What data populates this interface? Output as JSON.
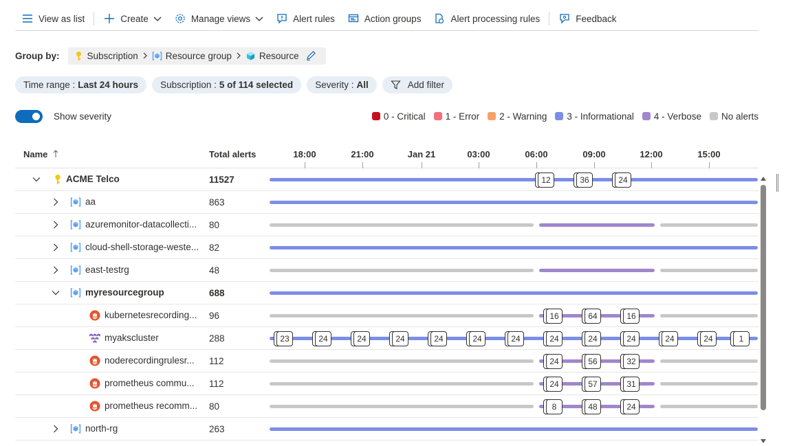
{
  "toolbar": {
    "view_as_list": "View as list",
    "create": "Create",
    "manage_views": "Manage views",
    "alert_rules": "Alert rules",
    "action_groups": "Action groups",
    "alert_processing_rules": "Alert processing rules",
    "feedback": "Feedback"
  },
  "group_by": {
    "label": "Group by:",
    "levels": [
      "Subscription",
      "Resource group",
      "Resource"
    ]
  },
  "filters": {
    "time_range": {
      "key": "Time range :",
      "value": "Last 24 hours"
    },
    "subscription": {
      "key": "Subscription :",
      "value": "5 of 114 selected"
    },
    "severity": {
      "key": "Severity :",
      "value": "All"
    },
    "add_filter": "Add filter"
  },
  "severity_toggle": {
    "label": "Show severity",
    "on": true
  },
  "legend": [
    {
      "label": "0 - Critical",
      "color": "#c50f1f"
    },
    {
      "label": "1 - Error",
      "color": "#f1707b"
    },
    {
      "label": "2 - Warning",
      "color": "#f4a266"
    },
    {
      "label": "3 - Informational",
      "color": "#7b8ee8"
    },
    {
      "label": "4 - Verbose",
      "color": "#a186cc"
    },
    {
      "label": "No alerts",
      "color": "#c8c8c8"
    }
  ],
  "grid": {
    "name_header": "Name",
    "name_sort_icon": "sort-ascending-arrow",
    "total_header": "Total alerts",
    "ticks": [
      "18:00",
      "21:00",
      "Jan 21",
      "03:00",
      "06:00",
      "09:00",
      "12:00",
      "15:00"
    ]
  },
  "rows": [
    {
      "name": "ACME Telco",
      "total": "11527",
      "bold": true
    },
    {
      "name": "aa",
      "total": "863"
    },
    {
      "name": "azuremonitor-datacollecti...",
      "total": "80"
    },
    {
      "name": "cloud-shell-storage-weste...",
      "total": "82"
    },
    {
      "name": "east-testrg",
      "total": "48"
    },
    {
      "name": "myresourcegroup",
      "total": "688",
      "bold": true
    },
    {
      "name": "kubernetesrecording...",
      "total": "96"
    },
    {
      "name": "myakscluster",
      "total": "288"
    },
    {
      "name": "noderecordingrulesr...",
      "total": "112"
    },
    {
      "name": "prometheus commu...",
      "total": "112"
    },
    {
      "name": "prometheus recomm...",
      "total": "80"
    },
    {
      "name": "north-rg",
      "total": "263"
    }
  ],
  "markers": {
    "acme": [
      "12",
      "36",
      "24"
    ],
    "kubernetes": [
      "16",
      "64",
      "16"
    ],
    "myakscluster": [
      "23",
      "24",
      "24",
      "24",
      "24",
      "24",
      "24",
      "24",
      "24",
      "24",
      "24",
      "24",
      "1"
    ],
    "noderecording": [
      "24",
      "56",
      "32"
    ],
    "prometheus_commu": [
      "24",
      "57",
      "31"
    ],
    "prometheus_recomm": [
      "8",
      "48",
      "24"
    ]
  }
}
